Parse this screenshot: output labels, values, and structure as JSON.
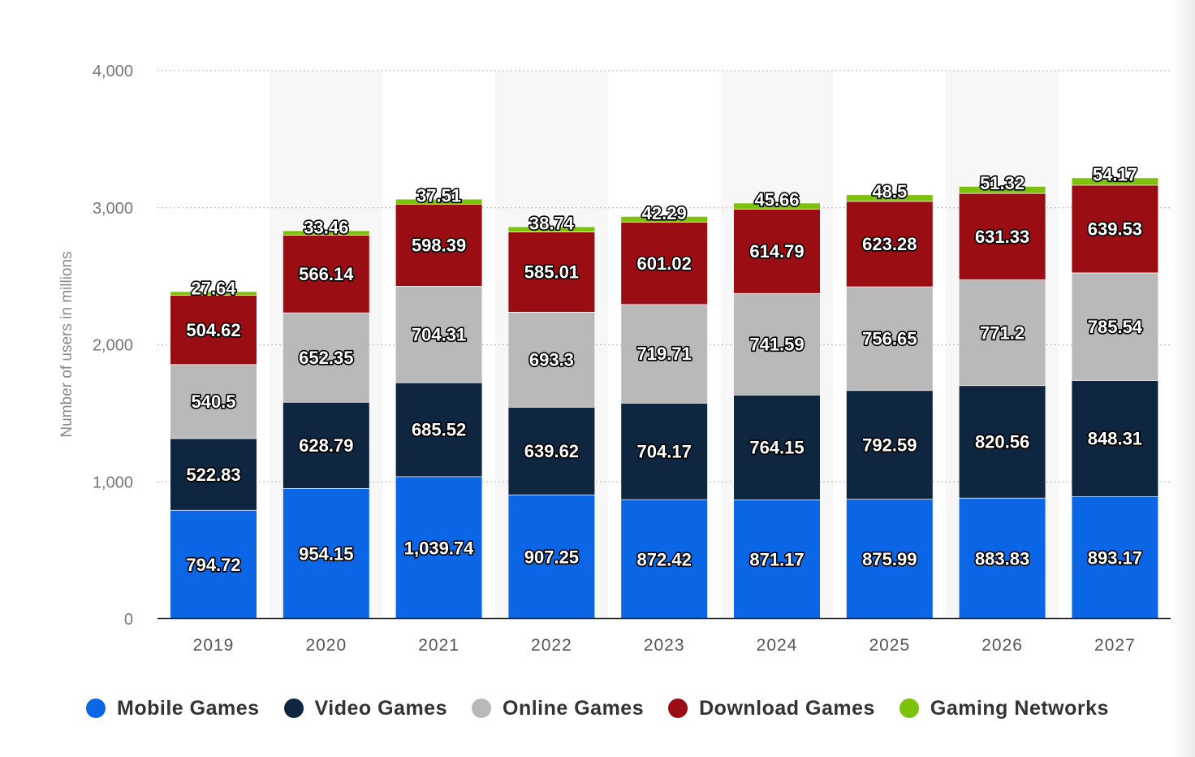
{
  "chart_data": {
    "type": "bar",
    "stacked": true,
    "categories": [
      "2019",
      "2020",
      "2021",
      "2022",
      "2023",
      "2024",
      "2025",
      "2026",
      "2027"
    ],
    "series": [
      {
        "name": "Mobile Games",
        "color": "#0a66e4",
        "values": [
          794.72,
          954.15,
          1039.74,
          907.25,
          872.42,
          871.17,
          875.99,
          883.83,
          893.17
        ],
        "labels": [
          "794.72",
          "954.15",
          "1,039.74",
          "907.25",
          "872.42",
          "871.17",
          "875.99",
          "883.83",
          "893.17"
        ]
      },
      {
        "name": "Video Games",
        "color": "#0f2640",
        "values": [
          522.83,
          628.79,
          685.52,
          639.62,
          704.17,
          764.15,
          792.59,
          820.56,
          848.31
        ],
        "labels": [
          "522.83",
          "628.79",
          "685.52",
          "639.62",
          "704.17",
          "764.15",
          "792.59",
          "820.56",
          "848.31"
        ]
      },
      {
        "name": "Online Games",
        "color": "#b9b9b9",
        "values": [
          540.5,
          652.35,
          704.31,
          693.3,
          719.71,
          741.59,
          756.65,
          771.2,
          785.54
        ],
        "labels": [
          "540.5",
          "652.35",
          "704.31",
          "693.3",
          "719.71",
          "741.59",
          "756.65",
          "771.2",
          "785.54"
        ]
      },
      {
        "name": "Download Games",
        "color": "#9a0d13",
        "values": [
          504.62,
          566.14,
          598.39,
          585.01,
          601.02,
          614.79,
          623.28,
          631.33,
          639.53
        ],
        "labels": [
          "504.62",
          "566.14",
          "598.39",
          "585.01",
          "601.02",
          "614.79",
          "623.28",
          "631.33",
          "639.53"
        ]
      },
      {
        "name": "Gaming Networks",
        "color": "#7cc20d",
        "values": [
          27.64,
          33.46,
          37.51,
          38.74,
          42.29,
          45.66,
          48.5,
          51.32,
          54.17
        ],
        "labels": [
          "27.64",
          "33.46",
          "37.51",
          "38.74",
          "42.29",
          "45.66",
          "48.5",
          "51.32",
          "54.17"
        ]
      }
    ],
    "ylabel": "Number of users in millions",
    "ylim": [
      0,
      4000
    ],
    "yticks": [
      0,
      1000,
      2000,
      3000,
      4000
    ],
    "ytick_labels": [
      "0",
      "1,000",
      "2,000",
      "3,000",
      "4,000"
    ],
    "grid": true,
    "legend_position": "bottom"
  }
}
